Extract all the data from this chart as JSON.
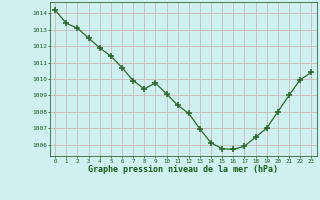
{
  "x": [
    0,
    1,
    2,
    3,
    4,
    5,
    6,
    7,
    8,
    9,
    10,
    11,
    12,
    13,
    14,
    15,
    16,
    17,
    18,
    19,
    20,
    21,
    22,
    23
  ],
  "y": [
    1014.2,
    1013.4,
    1013.1,
    1012.5,
    1011.9,
    1011.4,
    1010.7,
    1009.9,
    1009.4,
    1009.75,
    1009.1,
    1008.4,
    1007.9,
    1006.95,
    1006.1,
    1005.75,
    1005.7,
    1005.9,
    1006.45,
    1007.0,
    1008.0,
    1009.0,
    1009.95,
    1010.4
  ],
  "line_color": "#2d6a2d",
  "marker_color": "#2d6a2d",
  "bg_color": "#cef0ee",
  "grid_color": "#c8b8b8",
  "xlabel": "Graphe pression niveau de la mer (hPa)",
  "xlabel_color": "#1a5c1a",
  "tick_color": "#1a5c1a",
  "ylim_min": 1005.3,
  "ylim_max": 1014.7,
  "xlim_min": -0.5,
  "xlim_max": 23.5,
  "yticks": [
    1006,
    1007,
    1008,
    1009,
    1010,
    1011,
    1012,
    1013,
    1014
  ],
  "xticks": [
    0,
    1,
    2,
    3,
    4,
    5,
    6,
    7,
    8,
    9,
    10,
    11,
    12,
    13,
    14,
    15,
    16,
    17,
    18,
    19,
    20,
    21,
    22,
    23
  ]
}
